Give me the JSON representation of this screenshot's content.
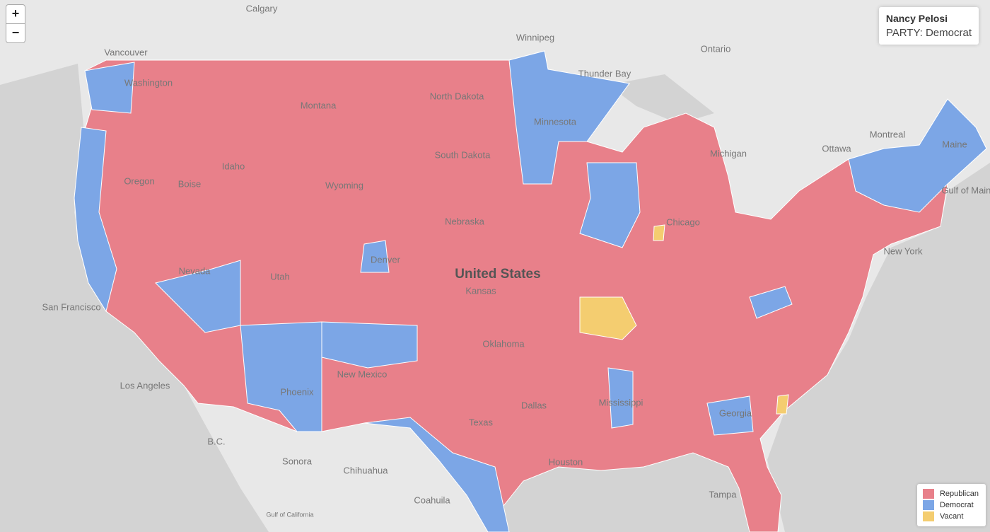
{
  "controls": {
    "zoom_in": "+",
    "zoom_out": "−"
  },
  "info_box": {
    "name": "Nancy Pelosi",
    "party": "PARTY: Democrat"
  },
  "legend": [
    {
      "label": "Republican",
      "color": "#e8808a"
    },
    {
      "label": "Democrat",
      "color": "#7ca6e6"
    },
    {
      "label": "Vacant",
      "color": "#f4cd70"
    }
  ],
  "place_labels": [
    "Calgary",
    "Winnipeg",
    "Vancouver",
    "Thunder Bay",
    "Ontario",
    "Montreal",
    "Ottawa",
    "Gulf of Maine",
    "New York",
    "Washington",
    "Montana",
    "North Dakota",
    "Minnesota",
    "South Dakota",
    "Idaho",
    "Oregon",
    "Boise",
    "Wyoming",
    "Nebraska",
    "Nevada",
    "Utah",
    "Denver",
    "United States",
    "Kansas",
    "San Francisco",
    "Los Angeles",
    "Phoenix",
    "New Mexico",
    "Oklahoma",
    "Dallas",
    "Texas",
    "Houston",
    "Mississippi",
    "Georgia",
    "Tampa",
    "Sonora",
    "Chihuahua",
    "Coahuila",
    "Chicago",
    "Michigan",
    "Maine",
    "Gulf of California",
    "B.C."
  ]
}
